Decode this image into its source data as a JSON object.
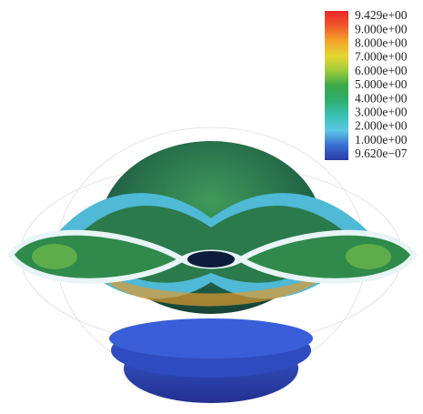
{
  "legend": {
    "labels": [
      "9.429e+00",
      "9.000e+00",
      "8.000e+00",
      "7.000e+00",
      "6.000e+00",
      "5.000e+00",
      "4.000e+00",
      "3.000e+00",
      "2.000e+00",
      "1.000e+00",
      "9.620e−07"
    ]
  }
}
